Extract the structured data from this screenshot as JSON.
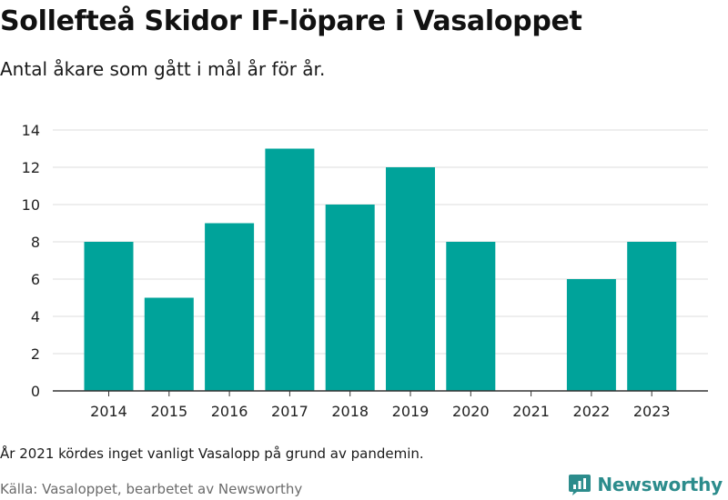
{
  "header": {
    "title": "Sollefteå Skidor IF-löpare i Vasaloppet",
    "subtitle": "Antal åkare som gått i mål år för år."
  },
  "footer": {
    "note": "År 2021 kördes inget vanligt Vasalopp på grund av pandemin.",
    "source": "Källa: Vasaloppet, bearbetet av Newsworthy",
    "brand": "Newsworthy",
    "brand_icon": "newsworthy-logo-icon"
  },
  "colors": {
    "bar": "#00a39a",
    "grid": "#dcdcdc",
    "axis": "#333333",
    "brand": "#2c8c8c"
  },
  "chart_data": {
    "type": "bar",
    "title": "Sollefteå Skidor IF-löpare i Vasaloppet",
    "subtitle": "Antal åkare som gått i mål år för år.",
    "categories": [
      "2014",
      "2015",
      "2016",
      "2017",
      "2018",
      "2019",
      "2020",
      "2021",
      "2022",
      "2023"
    ],
    "values": [
      8,
      5,
      9,
      13,
      10,
      12,
      8,
      0,
      6,
      8
    ],
    "xlabel": "",
    "ylabel": "",
    "ylim": [
      0,
      14
    ],
    "yticks": [
      0,
      2,
      4,
      6,
      8,
      10,
      12,
      14
    ],
    "grid": true,
    "legend": "none"
  }
}
